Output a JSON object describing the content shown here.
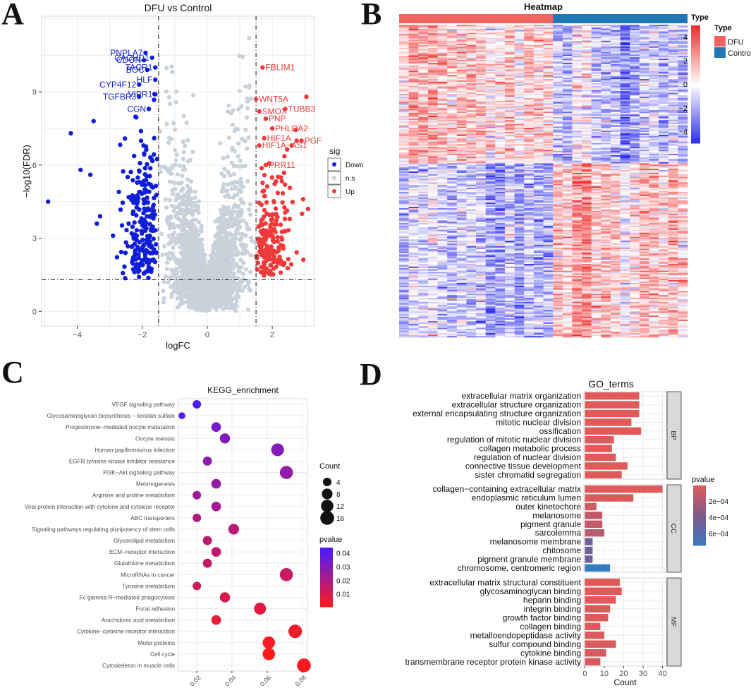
{
  "panels": {
    "a": "A",
    "b": "B",
    "c": "C",
    "d": "D"
  },
  "chart_data": [
    {
      "id": "A",
      "type": "scatter",
      "title": "DFU vs Control",
      "xlabel": "logFC",
      "ylabel": "−log10(FDR)",
      "xlim": [
        -5.1,
        3.3
      ],
      "ylim": [
        -0.6,
        12.1
      ],
      "xticks": [
        {
          "value": -4,
          "label": "−4"
        },
        {
          "value": -2,
          "label": "−2"
        },
        {
          "value": 0,
          "label": "0"
        },
        {
          "value": 2,
          "label": "2"
        }
      ],
      "yticks": [
        {
          "value": 0,
          "label": "0"
        },
        {
          "value": 3,
          "label": "3"
        },
        {
          "value": 6,
          "label": "6"
        },
        {
          "value": 9,
          "label": "9"
        }
      ],
      "thresholds": {
        "logfc": 1.5,
        "fdr": 1.3
      },
      "colors": {
        "Down": "#0f1ed6",
        "n.s": "#c9d1da",
        "Up": "#ee3a3a"
      },
      "legend": {
        "title": "sig",
        "items": [
          "Down",
          "n.s",
          "Up"
        ],
        "placement": "right"
      },
      "labels": [
        {
          "gene": "PNPLA7",
          "x": -1.9,
          "y": 10.6,
          "group": "Down"
        },
        {
          "gene": "CDON",
          "x": -1.95,
          "y": 10.3,
          "group": "Down"
        },
        {
          "gene": "CACHD1",
          "x": -1.7,
          "y": 10.4,
          "group": "Down"
        },
        {
          "gene": "BOC",
          "x": -1.85,
          "y": 9.9,
          "group": "Down"
        },
        {
          "gene": "TACR1",
          "x": -1.6,
          "y": 10.0,
          "group": "Down"
        },
        {
          "gene": "HLF",
          "x": -1.6,
          "y": 9.5,
          "group": "Down"
        },
        {
          "gene": "CYP4F12",
          "x": -2.1,
          "y": 9.3,
          "group": "Down"
        },
        {
          "gene": "TGFBR3",
          "x": -2.1,
          "y": 8.8,
          "group": "Down"
        },
        {
          "gene": "VIPR1",
          "x": -1.6,
          "y": 8.9,
          "group": "Down"
        },
        {
          "gene": "CGN",
          "x": -1.8,
          "y": 8.3,
          "group": "Down"
        },
        {
          "gene": "FBLIM1",
          "x": 1.7,
          "y": 10.0,
          "group": "Up"
        },
        {
          "gene": "WNT5A",
          "x": 1.5,
          "y": 8.7,
          "group": "Up"
        },
        {
          "gene": "TUBB3",
          "x": 2.4,
          "y": 8.3,
          "group": "Up"
        },
        {
          "gene": "SMOX",
          "x": 1.6,
          "y": 8.2,
          "group": "Up"
        },
        {
          "gene": "PNP",
          "x": 1.8,
          "y": 7.9,
          "group": "Up"
        },
        {
          "gene": "PHLDA2",
          "x": 2.0,
          "y": 7.5,
          "group": "Up"
        },
        {
          "gene": "HIF1A",
          "x": 1.75,
          "y": 7.1,
          "group": "Up"
        },
        {
          "gene": "PGF",
          "x": 2.9,
          "y": 7.0,
          "group": "Up"
        },
        {
          "gene": "HIF1A−AS1",
          "x": 1.6,
          "y": 6.8,
          "group": "Up"
        },
        {
          "gene": "PRR11",
          "x": 1.8,
          "y": 6.0,
          "group": "Up"
        }
      ]
    },
    {
      "id": "B",
      "type": "heatmap",
      "title": "Heatmap",
      "groups": [
        {
          "name": "DFU",
          "count": 16
        },
        {
          "name": "Control",
          "count": 14
        }
      ],
      "legend_groups": {
        "title": "Type",
        "items": [
          "DFU",
          "Control"
        ],
        "colors": [
          "#f06360",
          "#1f77b4"
        ]
      },
      "colorbar": {
        "title": "Type",
        "min": -5,
        "max": 5,
        "ticks": [
          {
            "value": 4,
            "label": "4"
          },
          {
            "value": 2,
            "label": "2"
          },
          {
            "value": 0,
            "label": "0"
          },
          {
            "value": -2,
            "label": "−2"
          },
          {
            "value": -4,
            "label": "−4"
          }
        ],
        "colors": {
          "low": "#2828f0",
          "mid": "#ffffff",
          "high": "#f03030"
        }
      }
    },
    {
      "id": "C",
      "type": "scatter",
      "title": "KEGG_enrichment",
      "xlim": [
        0.0095,
        0.083
      ],
      "xticks": [
        {
          "value": 0.02,
          "label": "0.02"
        },
        {
          "value": 0.04,
          "label": "0.04"
        },
        {
          "value": 0.06,
          "label": "0.06"
        },
        {
          "value": 0.08,
          "label": "0.08"
        }
      ],
      "pathways": [
        {
          "name": "VEGF signaling pathway",
          "gene_ratio": 0.02,
          "count": 4,
          "pvalue": 0.043
        },
        {
          "name": "Glycosaminoglycan biosynthesis − keratan sulfate",
          "gene_ratio": 0.0115,
          "count": 2,
          "pvalue": 0.04
        },
        {
          "name": "Progesterone−mediated oocyte maturation",
          "gene_ratio": 0.031,
          "count": 6,
          "pvalue": 0.033
        },
        {
          "name": "Oocyte meiosis",
          "gene_ratio": 0.036,
          "count": 7,
          "pvalue": 0.031
        },
        {
          "name": "Human papillomavirus infection",
          "gene_ratio": 0.066,
          "count": 13,
          "pvalue": 0.03
        },
        {
          "name": "EGFR tyrosine kinase inhibitor resistance",
          "gene_ratio": 0.026,
          "count": 5,
          "pvalue": 0.028
        },
        {
          "name": "PI3K−Akt signaling pathway",
          "gene_ratio": 0.071,
          "count": 14,
          "pvalue": 0.027
        },
        {
          "name": "Melanogenesis",
          "gene_ratio": 0.031,
          "count": 6,
          "pvalue": 0.026
        },
        {
          "name": "Arginine and proline metabolism",
          "gene_ratio": 0.02,
          "count": 4,
          "pvalue": 0.024
        },
        {
          "name": "Viral protein interaction with cytokine and cytokine receptor",
          "gene_ratio": 0.031,
          "count": 6,
          "pvalue": 0.023
        },
        {
          "name": "ABC transporters",
          "gene_ratio": 0.02,
          "count": 4,
          "pvalue": 0.02
        },
        {
          "name": "Signaling pathways regulating pluripotency of stem cells",
          "gene_ratio": 0.041,
          "count": 8,
          "pvalue": 0.018
        },
        {
          "name": "Glycerolipid metabolism",
          "gene_ratio": 0.026,
          "count": 5,
          "pvalue": 0.017
        },
        {
          "name": "ECM−receptor interaction",
          "gene_ratio": 0.031,
          "count": 6,
          "pvalue": 0.016
        },
        {
          "name": "Glutathione metabolism",
          "gene_ratio": 0.026,
          "count": 5,
          "pvalue": 0.015
        },
        {
          "name": "MicroRNAs in cancer",
          "gene_ratio": 0.071,
          "count": 14,
          "pvalue": 0.014
        },
        {
          "name": "Tyrosine metabolism",
          "gene_ratio": 0.02,
          "count": 4,
          "pvalue": 0.012
        },
        {
          "name": "Fc gamma R−mediated phagocytosis",
          "gene_ratio": 0.036,
          "count": 7,
          "pvalue": 0.01
        },
        {
          "name": "Focal adhesion",
          "gene_ratio": 0.056,
          "count": 11,
          "pvalue": 0.008
        },
        {
          "name": "Arachidonic acid metabolism",
          "gene_ratio": 0.031,
          "count": 6,
          "pvalue": 0.006
        },
        {
          "name": "Cytokine−cytokine receptor interaction",
          "gene_ratio": 0.076,
          "count": 15,
          "pvalue": 0.004
        },
        {
          "name": "Motor proteins",
          "gene_ratio": 0.061,
          "count": 12,
          "pvalue": 0.002
        },
        {
          "name": "Cell cycle",
          "gene_ratio": 0.061,
          "count": 12,
          "pvalue": 0.001
        },
        {
          "name": "Cytoskeleton in muscle cells",
          "gene_ratio": 0.081,
          "count": 16,
          "pvalue": 0.0005
        }
      ],
      "size_legend": {
        "title": "Count",
        "values": [
          4,
          8,
          12,
          16
        ]
      },
      "color_legend": {
        "title": "pvalue",
        "ticks": [
          {
            "value": 0.04,
            "label": "0.04"
          },
          {
            "value": 0.03,
            "label": "0.03"
          },
          {
            "value": 0.02,
            "label": "0.02"
          },
          {
            "value": 0.01,
            "label": "0.01"
          }
        ],
        "range": [
          0.0005,
          0.044
        ],
        "colors": {
          "low": "#ff1b1b",
          "high": "#4a1cff"
        }
      }
    },
    {
      "id": "D",
      "type": "bar",
      "title": "GO_terms",
      "xlabel": "Count",
      "xlim": [
        -0.5,
        42
      ],
      "xticks": [
        {
          "value": 0,
          "label": "0"
        },
        {
          "value": 10,
          "label": "10"
        },
        {
          "value": 20,
          "label": "20"
        },
        {
          "value": 30,
          "label": "30"
        },
        {
          "value": 40,
          "label": "40"
        }
      ],
      "facets": [
        {
          "name": "BP",
          "terms": [
            {
              "term": "extracellular matrix organization",
              "count": 28,
              "pvalue": 1e-05
            },
            {
              "term": "extracellular structure organization",
              "count": 28,
              "pvalue": 1e-05
            },
            {
              "term": "external encapsulating structure organization",
              "count": 28,
              "pvalue": 1e-05
            },
            {
              "term": "mitotic nuclear division",
              "count": 24,
              "pvalue": 1e-05
            },
            {
              "term": "ossification",
              "count": 29,
              "pvalue": 1e-05
            },
            {
              "term": "regulation of mitotic nuclear division",
              "count": 15,
              "pvalue": 1e-05
            },
            {
              "term": "collagen metabolic process",
              "count": 14,
              "pvalue": 1e-05
            },
            {
              "term": "regulation of nuclear division",
              "count": 16,
              "pvalue": 1e-05
            },
            {
              "term": "connective tissue development",
              "count": 22,
              "pvalue": 1e-05
            },
            {
              "term": "sister chromatid segregation",
              "count": 19,
              "pvalue": 1e-05
            }
          ]
        },
        {
          "name": "CC",
          "terms": [
            {
              "term": "collagen−containing extracellular matrix",
              "count": 40,
              "pvalue": 1e-05
            },
            {
              "term": "endoplasmic reticulum lumen",
              "count": 25,
              "pvalue": 2e-05
            },
            {
              "term": "outer kinetochore",
              "count": 6,
              "pvalue": 5e-05
            },
            {
              "term": "melanosome",
              "count": 9,
              "pvalue": 0.00012
            },
            {
              "term": "pigment granule",
              "count": 9,
              "pvalue": 0.00012
            },
            {
              "term": "sarcolemma",
              "count": 10,
              "pvalue": 0.00015
            },
            {
              "term": "melanosome membrane",
              "count": 4,
              "pvalue": 0.00045
            },
            {
              "term": "chitosome",
              "count": 4,
              "pvalue": 0.00045
            },
            {
              "term": "pigment granule membrane",
              "count": 4,
              "pvalue": 0.00045
            },
            {
              "term": "chromosome, centromeric region",
              "count": 13,
              "pvalue": 0.00075
            }
          ]
        },
        {
          "name": "MF",
          "terms": [
            {
              "term": "extracellular matrix structural constituent",
              "count": 18,
              "pvalue": 1e-05
            },
            {
              "term": "glycosaminoglycan binding",
              "count": 19,
              "pvalue": 1e-05
            },
            {
              "term": "heparin binding",
              "count": 16,
              "pvalue": 1e-05
            },
            {
              "term": "integrin binding",
              "count": 13,
              "pvalue": 2e-05
            },
            {
              "term": "growth factor binding",
              "count": 12,
              "pvalue": 2e-05
            },
            {
              "term": "collagen binding",
              "count": 8,
              "pvalue": 3e-05
            },
            {
              "term": "metalloendopeptidase activity",
              "count": 10,
              "pvalue": 3e-05
            },
            {
              "term": "sulfur compound binding",
              "count": 16,
              "pvalue": 3e-05
            },
            {
              "term": "cytokine binding",
              "count": 11,
              "pvalue": 4e-05
            },
            {
              "term": "transmembrane receptor protein kinase activity",
              "count": 8,
              "pvalue": 4e-05
            }
          ]
        }
      ],
      "color_legend": {
        "title": "pvalue",
        "ticks": [
          {
            "value": 0.0002,
            "label": "2e−04"
          },
          {
            "value": 0.0004,
            "label": "4e−04"
          },
          {
            "value": 0.0006,
            "label": "6e−04"
          }
        ],
        "range": [
          1e-05,
          0.00075
        ],
        "colors": {
          "low": "#e05a5a",
          "mid": "#7b5a8e",
          "high": "#3a7bbf"
        }
      }
    }
  ]
}
